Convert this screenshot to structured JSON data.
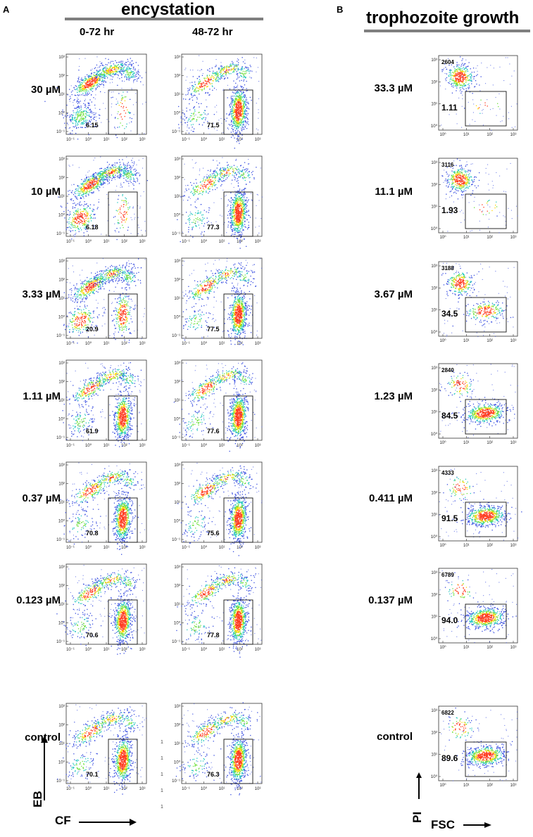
{
  "panel_a": {
    "letter": "A",
    "title": "encystation",
    "columns": [
      "0-72 hr",
      "48-72 hr"
    ],
    "rows": [
      {
        "dose": "30 µM",
        "gates": [
          "6.15",
          "71.5"
        ]
      },
      {
        "dose": "10 µM",
        "gates": [
          "6.18",
          "77.3"
        ]
      },
      {
        "dose": "3.33 µM",
        "gates": [
          "20.9",
          "77.5"
        ]
      },
      {
        "dose": "1.11 µM",
        "gates": [
          "61.9",
          "77.6"
        ]
      },
      {
        "dose": "0.37 µM",
        "gates": [
          "70.8",
          "75.6"
        ]
      },
      {
        "dose": "0.123 µM",
        "gates": [
          "70.6",
          "77.8"
        ]
      },
      {
        "dose": "control",
        "gates": [
          "70.1",
          "76.3"
        ]
      }
    ],
    "y_axis_label": "EB",
    "x_axis_label": "CF",
    "tick_labels": [
      "10⁻¹",
      "10⁰",
      "10¹",
      "10²",
      "10³"
    ],
    "stray_marks": [
      "1",
      "1",
      "1",
      "1",
      "1"
    ]
  },
  "panel_b": {
    "letter": "B",
    "title": "trophozoite growth",
    "rows": [
      {
        "dose": "33.3 µM",
        "count": "2604",
        "gate": "1.11"
      },
      {
        "dose": "11.1 µM",
        "count": "3116",
        "gate": "1.93"
      },
      {
        "dose": "3.67 µM",
        "count": "3188",
        "gate": "34.5"
      },
      {
        "dose": "1.23 µM",
        "count": "2840",
        "gate": "84.5"
      },
      {
        "dose": "0.411 µM",
        "count": "4333",
        "gate": "91.5"
      },
      {
        "dose": "0.137 µM",
        "count": "6789",
        "gate": "94.0"
      },
      {
        "dose": "control",
        "count": "6822",
        "gate": "89.6"
      }
    ],
    "y_axis_label": "PI",
    "x_axis_label": "FSC",
    "tick_labels": [
      "10⁰",
      "10¹",
      "10²",
      "10³"
    ]
  },
  "colors": {
    "dot_low": "#3a4fe0",
    "dot_mid": "#27c7c0",
    "dot_high": "#6fe03c",
    "dot_peak": "#ffd400",
    "dot_hot": "#ff3b1f",
    "title_bar": "#7f7f7f"
  }
}
